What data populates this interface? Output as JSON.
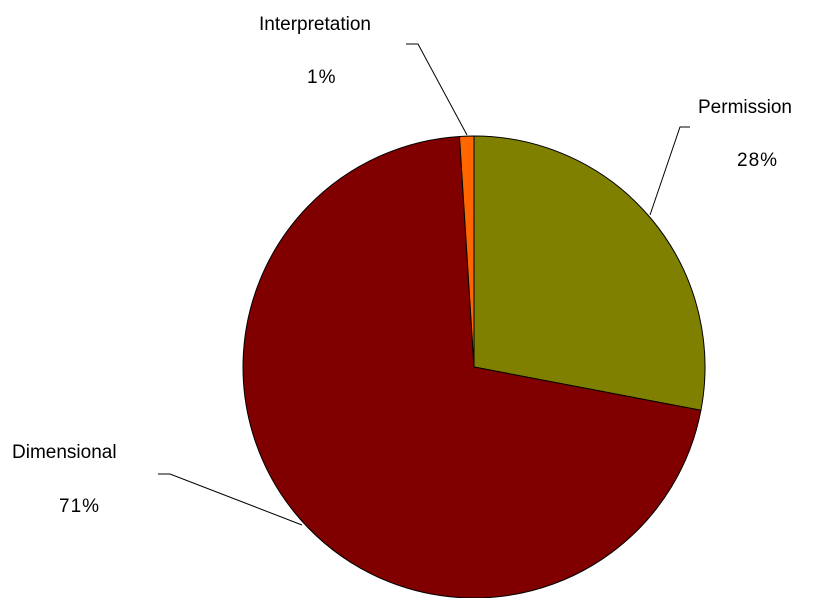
{
  "chart_data": {
    "type": "pie",
    "slices": [
      {
        "label": "Permission",
        "value": 28,
        "value_label": "28%",
        "color": "#808000"
      },
      {
        "label": "Dimensional",
        "value": 71,
        "value_label": "71%",
        "color": "#800000"
      },
      {
        "label": "Interpretation",
        "value": 1,
        "value_label": "1%",
        "color": "#ff6600"
      }
    ],
    "start_angle": "12 o'clock",
    "direction": "clockwise",
    "legend": "none",
    "data_labels": "outside with leader lines"
  }
}
